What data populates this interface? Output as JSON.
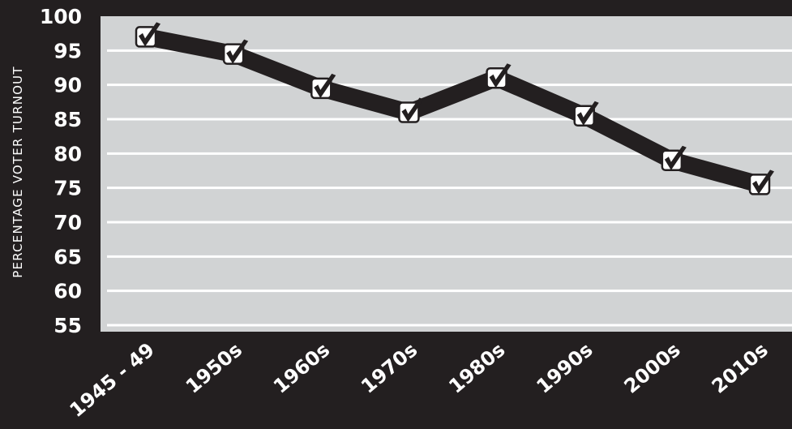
{
  "chart_data": {
    "type": "line",
    "title": "",
    "xlabel": "",
    "ylabel": "PERCENTAGE VOTER TURNOUT",
    "categories": [
      "1945 - 49",
      "1950s",
      "1960s",
      "1970s",
      "1980s",
      "1990s",
      "2000s",
      "2010s"
    ],
    "series": [
      {
        "values": [
          97,
          94.5,
          89.5,
          86,
          91,
          85.5,
          79,
          75.5
        ]
      }
    ],
    "y_ticks": [
      100,
      95,
      90,
      85,
      80,
      75,
      70,
      65,
      60,
      55
    ],
    "ylim": [
      55,
      100
    ],
    "grid": true,
    "legend": "none",
    "marker": "checkbox-tick",
    "colors": {
      "background": "#231f20",
      "plot_area": "#d1d3d4",
      "grid": "#ffffff",
      "line": "#231f20",
      "text": "#ffffff",
      "marker_fill": "#ffffff"
    }
  }
}
